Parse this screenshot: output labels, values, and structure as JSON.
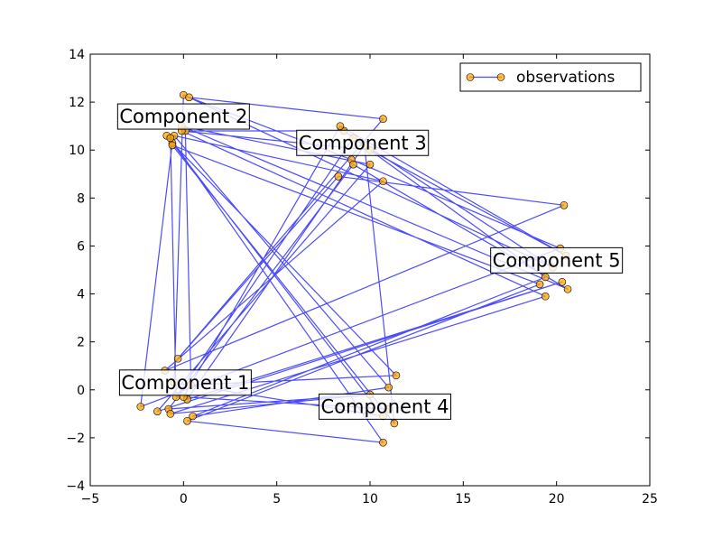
{
  "chart_data": {
    "type": "line",
    "title": "",
    "xlabel": "",
    "ylabel": "",
    "xlim": [
      -5,
      25
    ],
    "ylim": [
      -4,
      14
    ],
    "xticks": [
      "−5",
      "0",
      "5",
      "10",
      "15",
      "20",
      "25"
    ],
    "yticks": [
      "−4",
      "−2",
      "0",
      "2",
      "4",
      "6",
      "8",
      "10",
      "12",
      "14"
    ],
    "legend": {
      "position": "top-right",
      "label": "observations"
    },
    "colors": {
      "line": "#0000ff",
      "marker": "#ffa500"
    },
    "series": [
      {
        "name": "observations",
        "points": [
          [
            -0.9,
            10.6
          ],
          [
            10.7,
            -1.1
          ],
          [
            -0.5,
            0.3
          ],
          [
            0.0,
            12.3
          ],
          [
            19.8,
            5.1
          ],
          [
            8.6,
            10.8
          ],
          [
            0.1,
            10.8
          ],
          [
            0.4,
            0.2
          ],
          [
            11.4,
            0.6
          ],
          [
            -0.6,
            10.3
          ],
          [
            -2.3,
            -0.7
          ],
          [
            20.2,
            5.9
          ],
          [
            9.0,
            9.6
          ],
          [
            0.3,
            12.2
          ],
          [
            10.7,
            11.3
          ],
          [
            -0.3,
            1.3
          ],
          [
            8.3,
            8.9
          ],
          [
            20.4,
            7.7
          ],
          [
            -1.0,
            0.8
          ],
          [
            10.7,
            8.7
          ],
          [
            -0.5,
            10.6
          ],
          [
            11.0,
            0.1
          ],
          [
            0.5,
            -1.1
          ],
          [
            19.4,
            4.7
          ],
          [
            9.1,
            10.5
          ],
          [
            -0.4,
            -0.3
          ],
          [
            -0.7,
            10.5
          ],
          [
            10.7,
            -2.2
          ],
          [
            0.2,
            -1.3
          ],
          [
            19.1,
            4.4
          ],
          [
            -0.6,
            10.2
          ],
          [
            11.3,
            -1.4
          ],
          [
            9.7,
            10.2
          ],
          [
            0.2,
            -0.4
          ],
          [
            20.3,
            4.5
          ],
          [
            -1.4,
            -0.9
          ],
          [
            10.0,
            9.4
          ],
          [
            -0.1,
            11.0
          ],
          [
            20.6,
            4.2
          ],
          [
            9.1,
            9.4
          ],
          [
            -0.8,
            -0.8
          ],
          [
            10.0,
            -0.2
          ],
          [
            -0.7,
            -1.0
          ],
          [
            19.4,
            3.9
          ],
          [
            -0.1,
            10.8
          ],
          [
            10.0,
            10.0
          ],
          [
            20.5,
            5.6
          ],
          [
            8.4,
            11.0
          ],
          [
            0.0,
            -0.3
          ],
          [
            11.0,
            -0.8
          ]
        ]
      }
    ],
    "annotations": [
      {
        "text": "Component 1",
        "x": 0.1,
        "y": 0.3
      },
      {
        "text": "Component 2",
        "x": 0.0,
        "y": 11.4
      },
      {
        "text": "Component 3",
        "x": 9.6,
        "y": 10.3
      },
      {
        "text": "Component 4",
        "x": 10.8,
        "y": -0.7
      },
      {
        "text": "Component 5",
        "x": 20.0,
        "y": 5.4
      }
    ]
  }
}
